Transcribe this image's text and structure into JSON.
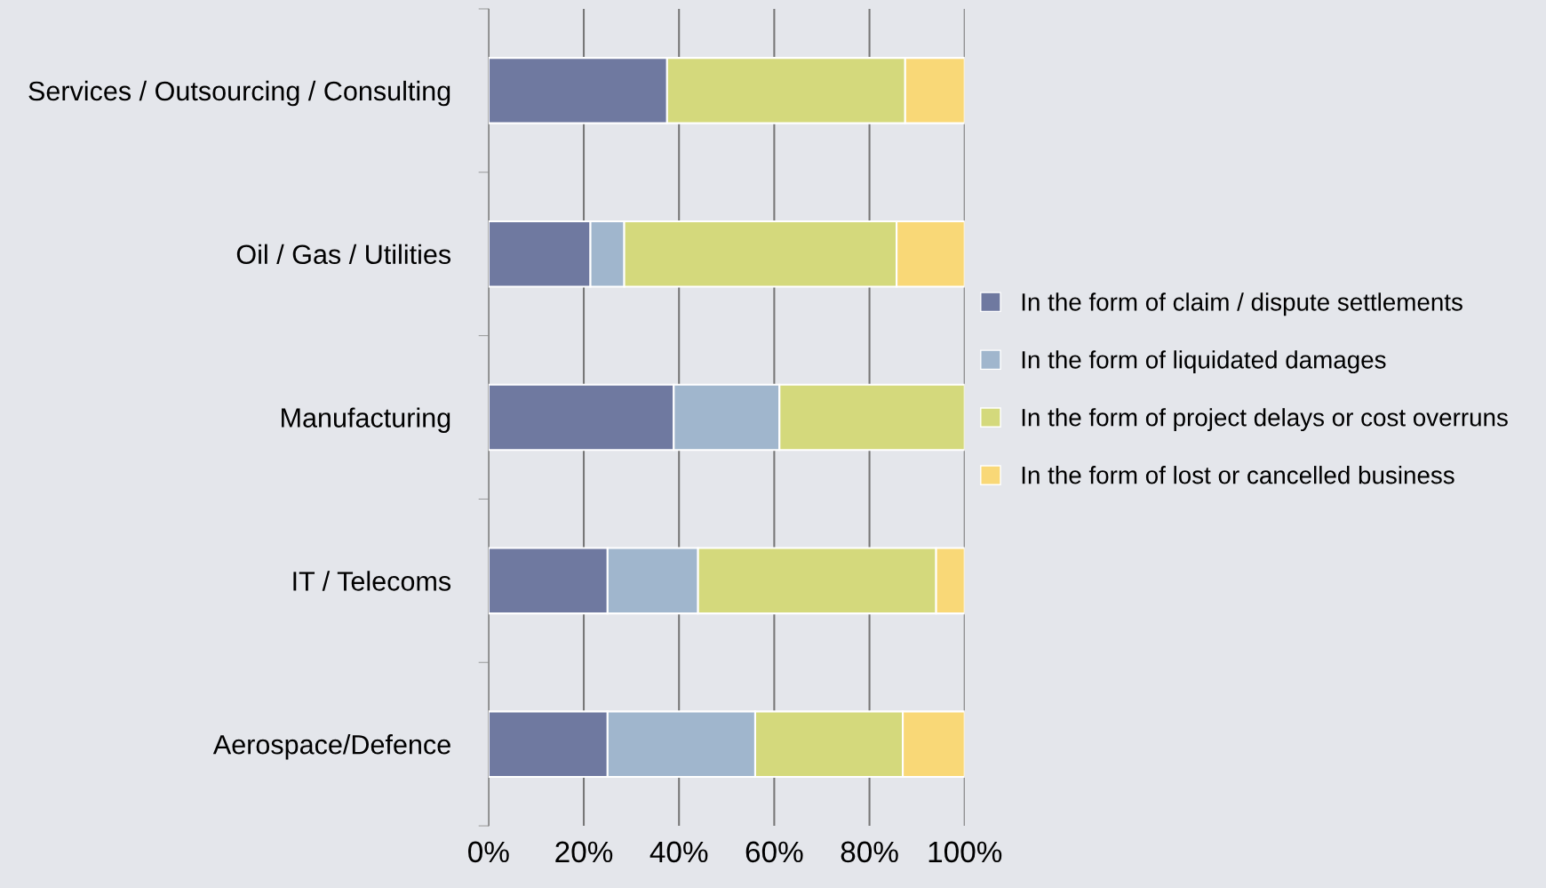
{
  "chart_data": {
    "type": "bar",
    "orientation": "horizontal",
    "stacked": true,
    "categories": [
      "Services / Outsourcing / Consulting",
      "Oil / Gas / Utilities",
      "Manufacturing",
      "IT / Telecoms",
      "Aerospace/Defence"
    ],
    "series": [
      {
        "name": "In the form of claim / dispute settlements",
        "color": "#6f79a0",
        "values": [
          37.5,
          21.4,
          38.9,
          25,
          25
        ]
      },
      {
        "name": "In the form of liquidated damages",
        "color": "#a0b6cd",
        "values": [
          null,
          7.1,
          22.2,
          19,
          31
        ]
      },
      {
        "name": "In the form of project delays or cost overruns",
        "color": "#d4d97c",
        "values": [
          50,
          57.2,
          38.9,
          50,
          31
        ]
      },
      {
        "name": "In the form of lost or cancelled business",
        "color": "#f9d877",
        "values": [
          12.5,
          14.3,
          null,
          6,
          13
        ]
      }
    ],
    "xlim": [
      0,
      100
    ],
    "xticks": [
      {
        "value": 0,
        "label": "0%"
      },
      {
        "value": 20,
        "label": "20%"
      },
      {
        "value": 40,
        "label": "40%"
      },
      {
        "value": 60,
        "label": "60%"
      },
      {
        "value": 80,
        "label": "80%"
      },
      {
        "value": 100,
        "label": "100%"
      }
    ],
    "grid": "x",
    "legend": "right"
  }
}
